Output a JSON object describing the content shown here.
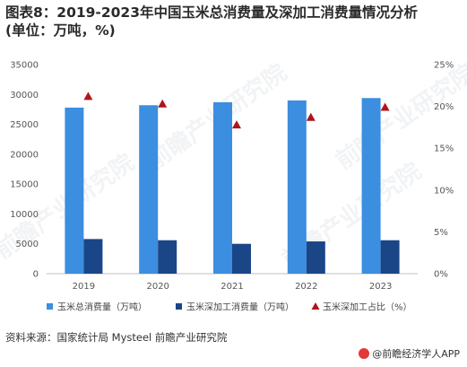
{
  "title_line1": "图表8：2019-2023年中国玉米总消费量及深加工消费量情况分析",
  "title_line2": "(单位：万吨，%)",
  "source": "资料来源：国家统计局 Mysteel 前瞻产业研究院",
  "brand": "@前瞻经济学人APP",
  "watermark": "前瞻产业研究院",
  "chart_data": {
    "type": "bar",
    "categories": [
      "2019",
      "2020",
      "2021",
      "2022",
      "2023"
    ],
    "series": [
      {
        "name": "玉米总消费量（万吨）",
        "kind": "bar",
        "axis": "left",
        "color": "#3b8ee0",
        "values": [
          27800,
          28200,
          28700,
          29000,
          29400
        ]
      },
      {
        "name": "玉米深加工消费量（万吨）",
        "kind": "bar",
        "axis": "left",
        "color": "#1a4687",
        "values": [
          5800,
          5600,
          5000,
          5400,
          5600
        ]
      },
      {
        "name": "玉米深加工占比（%）",
        "kind": "marker",
        "axis": "right",
        "color": "#b0141c",
        "values": [
          21.2,
          20.3,
          17.8,
          18.7,
          19.9
        ]
      }
    ],
    "left_axis": {
      "min": 0,
      "max": 35000,
      "ticks": [
        "0",
        "5000",
        "10000",
        "15000",
        "20000",
        "25000",
        "30000",
        "35000"
      ]
    },
    "right_axis": {
      "min": 0,
      "max": 25,
      "ticks": [
        "0%",
        "5%",
        "10%",
        "15%",
        "20%",
        "25%"
      ]
    },
    "grid": false,
    "legend_position": "bottom"
  }
}
